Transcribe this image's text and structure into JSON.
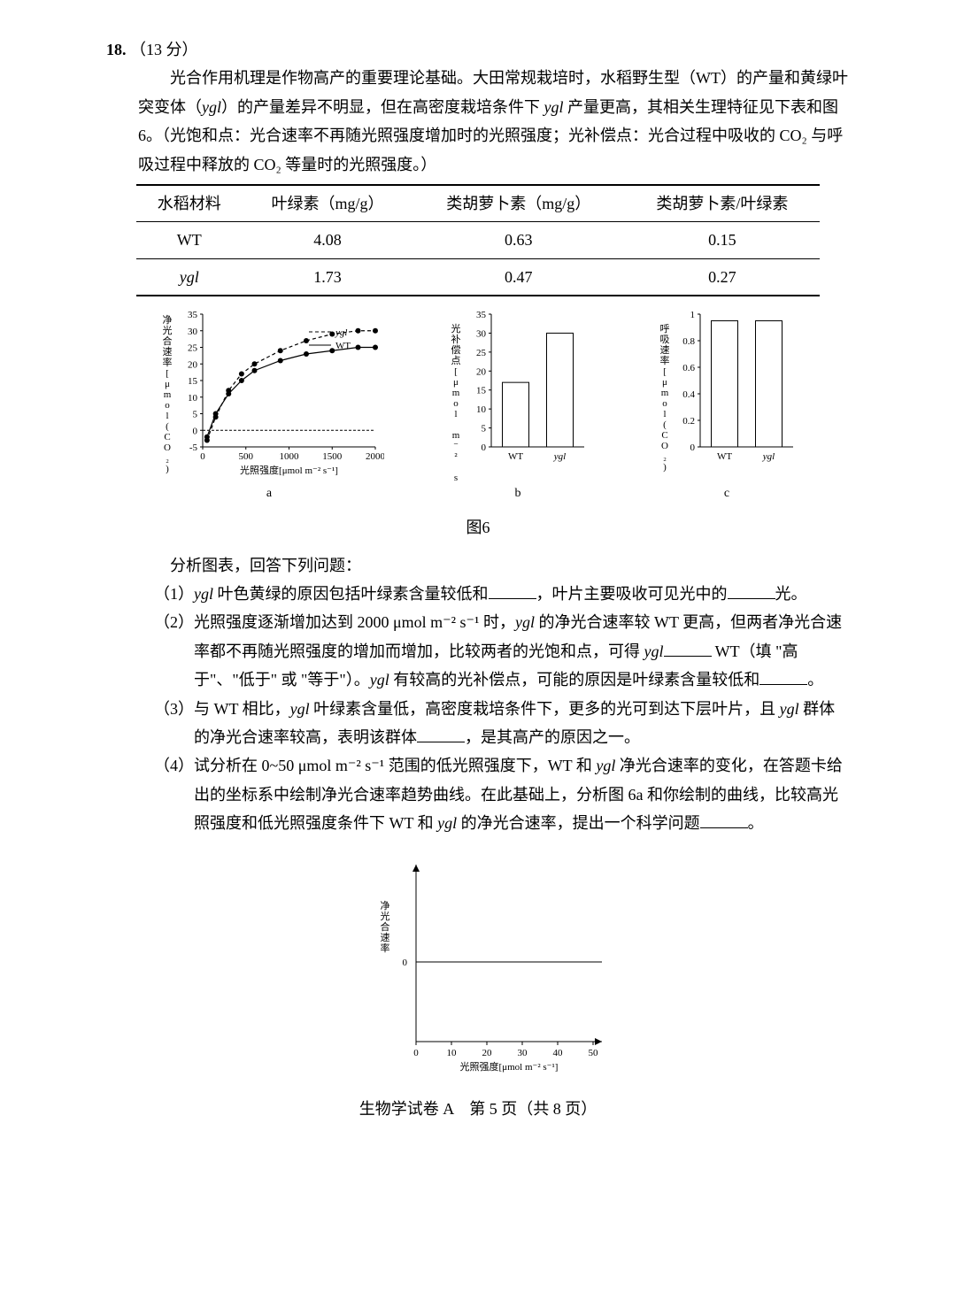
{
  "question": {
    "number": "18.",
    "points": "（13 分）",
    "para1": "光合作用机理是作物高产的重要理论基础。大田常规栽培时，水稻野生型（WT）的产量和黄绿叶突变体（",
    "para1_it1": "ygl",
    "para1_b": "）的产量差异不明显，但在高密度栽培条件下 ",
    "para1_it2": "ygl",
    "para1_c": " 产量更高，其相关生理特征见下表和图 6。（光饱和点：光合速率不再随光照强度增加时的光照强度；光补偿点：光合过程中吸收的 CO₂ 与呼吸过程中释放的 CO₂ 等量时的光照强度。）"
  },
  "table": {
    "headers": [
      "水稻材料",
      "叶绿素（mg/g）",
      "类胡萝卜素（mg/g）",
      "类胡萝卜素/叶绿素"
    ],
    "rows": [
      [
        "WT",
        "4.08",
        "0.63",
        "0.15"
      ],
      [
        "ygl",
        "1.73",
        "0.47",
        "0.27"
      ]
    ]
  },
  "fig6": {
    "caption": "图6",
    "labels": {
      "a": "a",
      "b": "b",
      "c": "c"
    },
    "chartA": {
      "type": "line",
      "ylabel_cn": "净光合速率[μmol(CO₂) m⁻² s⁻¹]",
      "xlabel": "光照强度[μmol m⁻² s⁻¹]",
      "yticks": [
        -5,
        0,
        5,
        10,
        15,
        20,
        25,
        30,
        35
      ],
      "xticks": [
        0,
        500,
        1000,
        1500,
        2000
      ],
      "series": [
        {
          "name": "ygl",
          "dash": "4,3",
          "pts": [
            [
              50,
              -3
            ],
            [
              150,
              4
            ],
            [
              300,
              12
            ],
            [
              450,
              17
            ],
            [
              600,
              20
            ],
            [
              900,
              24
            ],
            [
              1200,
              27
            ],
            [
              1500,
              29
            ],
            [
              1800,
              30
            ],
            [
              2000,
              30
            ]
          ]
        },
        {
          "name": "WT",
          "dash": "0",
          "pts": [
            [
              50,
              -2
            ],
            [
              150,
              5
            ],
            [
              300,
              11
            ],
            [
              450,
              15
            ],
            [
              600,
              18
            ],
            [
              900,
              21
            ],
            [
              1200,
              23
            ],
            [
              1500,
              24
            ],
            [
              1800,
              25
            ],
            [
              2000,
              25
            ]
          ]
        }
      ],
      "legend": [
        "ygl",
        "WT"
      ],
      "line_color": "#000000",
      "marker": "circle",
      "marker_size": 3,
      "xlim": [
        0,
        2000
      ],
      "ylim": [
        -5,
        35
      ]
    },
    "chartB": {
      "type": "bar",
      "ylabel_cn": "光补偿点[μmol m⁻² s⁻¹]",
      "categories": [
        "WT",
        "ygl"
      ],
      "values": [
        17,
        30
      ],
      "yticks": [
        0,
        5,
        10,
        15,
        20,
        25,
        30,
        35
      ],
      "bar_fill": "#ffffff",
      "bar_stroke": "#000000",
      "ylim": [
        0,
        35
      ]
    },
    "chartC": {
      "type": "bar",
      "ylabel_cn": "呼吸速率[μmol(CO₂) m⁻² s⁻¹]",
      "categories": [
        "WT",
        "ygl"
      ],
      "values": [
        0.95,
        0.95
      ],
      "yticks": [
        0,
        0.2,
        0.4,
        0.6,
        0.8,
        1.0
      ],
      "bar_fill": "#ffffff",
      "bar_stroke": "#000000",
      "ylim": [
        0,
        1.0
      ]
    }
  },
  "analysis_intro": "分析图表，回答下列问题：",
  "q1": {
    "label": "（1）",
    "t1": "ygl",
    "t2": " 叶色黄绿的原因包括叶绿素含量较低和",
    "t3": "，叶片主要吸收可见光中的",
    "t4": "光。"
  },
  "q2": {
    "label": "（2）",
    "t1": "光照强度逐渐增加达到 2000 μmol m⁻² s⁻¹ 时，",
    "it1": "ygl",
    "t2": " 的净光合速率较 WT 更高，但两者净光合速率都不再随光照强度的增加而增加，比较两者的光饱和点，可得 ",
    "it2": "ygl",
    "t3": " WT（填 \"高于\"、\"低于\" 或 \"等于\"）。",
    "it3": "ygl",
    "t4": " 有较高的光补偿点，可能的原因是叶绿素含量较低和",
    "t5": "。"
  },
  "q3": {
    "label": "（3）",
    "t1": "与 WT 相比，",
    "it1": "ygl",
    "t2": " 叶绿素含量低，高密度栽培条件下，更多的光可到达下层叶片，且 ",
    "it2": "ygl",
    "t3": " 群体的净光合速率较高，表明该群体",
    "t4": "，是其高产的原因之一。"
  },
  "q4": {
    "label": "（4）",
    "t1": "试分析在 0~50 μmol m⁻² s⁻¹ 范围的低光照强度下，WT 和 ",
    "it1": "ygl",
    "t2": " 净光合速率的变化，在答题卡给出的坐标系中绘制净光合速率趋势曲线。在此基础上，分析图 6a 和你绘制的曲线，比较高光照强度和低光照强度条件下 WT 和 ",
    "it2": "ygl",
    "t3": " 的净光合速率，提出一个科学问题",
    "t4": "。"
  },
  "answer_chart": {
    "ylabel": "净光合速率",
    "xlabel": "光照强度[μmol m⁻² s⁻¹]",
    "xticks": [
      0,
      10,
      20,
      30,
      40,
      50
    ],
    "y_zero_label": "0",
    "xlim": [
      0,
      50
    ]
  },
  "footer": "生物学试卷 A　第 5 页（共 8 页）"
}
